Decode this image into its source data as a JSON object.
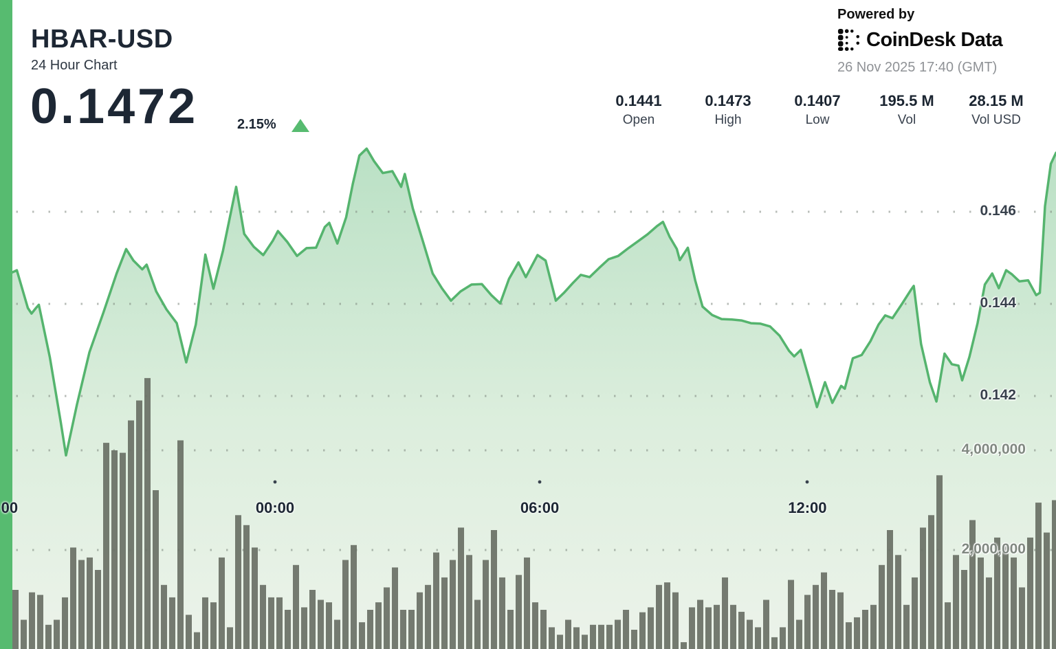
{
  "header": {
    "symbol": "HBAR-USD",
    "subtitle": "24 Hour Chart",
    "price": "0.1472",
    "change_pct": "2.15%",
    "change_direction": "up",
    "powered_by": "Powered by",
    "brand": "CoinDesk Data",
    "timestamp": "26 Nov 2025 17:40 (GMT)"
  },
  "stats": [
    {
      "value": "0.1441",
      "label": "Open"
    },
    {
      "value": "0.1473",
      "label": "High"
    },
    {
      "value": "0.1407",
      "label": "Low"
    },
    {
      "value": "195.5 M",
      "label": "Vol"
    },
    {
      "value": "28.15 M",
      "label": "Vol USD"
    }
  ],
  "colors": {
    "accent": "#57bb70",
    "line": "#55b46e",
    "fill_top": "#b9e0c4",
    "fill_mid": "#dceedd",
    "fill_bottom": "#ecf3ea",
    "volume_bar": "#6b7166",
    "grid_dot": "#7e877e",
    "tick_dot": "#39434e",
    "triangle": "#57bb70"
  },
  "chart_data": {
    "type": "area",
    "title": "HBAR-USD 24 Hour Chart",
    "legend": "none",
    "grid": "dotted-horizontal",
    "x_axis": {
      "span_min": 1440,
      "ticks": [
        {
          "label": "00",
          "t_min": 13,
          "tick_dot": false
        },
        {
          "label": "00:00",
          "t_min": 375,
          "tick_dot": true
        },
        {
          "label": "06:00",
          "t_min": 736,
          "tick_dot": true
        },
        {
          "label": "12:00",
          "t_min": 1101,
          "tick_dot": true
        }
      ]
    },
    "y_axis_price": {
      "gridlines": [
        0.146,
        0.144,
        0.142
      ],
      "labels": [
        "0.146",
        "0.144",
        "0.142"
      ],
      "range": [
        0.1405,
        0.1475
      ]
    },
    "y_axis_volume": {
      "gridlines_millions": [
        4,
        2
      ],
      "labels": [
        "4,000,000",
        "2,000,000"
      ],
      "range_millions": [
        0,
        5.6
      ]
    },
    "price_series": {
      "t_min": [
        0,
        15,
        23,
        38,
        43,
        49,
        53,
        68,
        83,
        90,
        105,
        122,
        141,
        159,
        172,
        182,
        194,
        200,
        213,
        227,
        241,
        254,
        267,
        280,
        291,
        304,
        322,
        333,
        346,
        359,
        372,
        379,
        392,
        405,
        418,
        431,
        443,
        449,
        460,
        472,
        481,
        490,
        500,
        510,
        522,
        535,
        547,
        552,
        563,
        577,
        590,
        603,
        615,
        628,
        643,
        657,
        670,
        682,
        694,
        707,
        717,
        733,
        744,
        758,
        769,
        781,
        792,
        804,
        817,
        830,
        843,
        857,
        870,
        883,
        896,
        904,
        913,
        923,
        927,
        938,
        948,
        958,
        971,
        984,
        998,
        1011,
        1024,
        1037,
        1050,
        1063,
        1076,
        1083,
        1092,
        1103,
        1114,
        1125,
        1135,
        1147,
        1152,
        1163,
        1175,
        1187,
        1198,
        1207,
        1217,
        1230,
        1242,
        1246,
        1256,
        1268,
        1277,
        1288,
        1298,
        1307,
        1312,
        1322,
        1333,
        1343,
        1353,
        1362,
        1372,
        1380,
        1390,
        1402,
        1413,
        1418,
        1425,
        1433,
        1440
      ],
      "price": [
        0.1446,
        0.14467,
        0.14473,
        0.14391,
        0.14379,
        0.14391,
        0.14398,
        0.14284,
        0.14142,
        0.14071,
        0.14182,
        0.14295,
        0.14381,
        0.14466,
        0.14519,
        0.14494,
        0.14475,
        0.14485,
        0.14427,
        0.14388,
        0.14358,
        0.14273,
        0.14355,
        0.14507,
        0.14433,
        0.14515,
        0.14654,
        0.14552,
        0.14524,
        0.14506,
        0.14537,
        0.14558,
        0.14534,
        0.14504,
        0.14521,
        0.14522,
        0.14567,
        0.14576,
        0.14531,
        0.14588,
        0.1466,
        0.14722,
        0.14737,
        0.1471,
        0.14684,
        0.14688,
        0.14654,
        0.14682,
        0.14607,
        0.14534,
        0.14466,
        0.14433,
        0.14407,
        0.14427,
        0.14442,
        0.14443,
        0.14419,
        0.14401,
        0.14454,
        0.1449,
        0.14458,
        0.14506,
        0.14494,
        0.14407,
        0.14424,
        0.14445,
        0.14463,
        0.14458,
        0.14478,
        0.14497,
        0.14504,
        0.14521,
        0.14536,
        0.14551,
        0.14569,
        0.14578,
        0.14546,
        0.14519,
        0.14495,
        0.14522,
        0.14451,
        0.14394,
        0.14376,
        0.14367,
        0.14366,
        0.14364,
        0.14358,
        0.14357,
        0.14351,
        0.14331,
        0.14298,
        0.14286,
        0.143,
        0.14239,
        0.14176,
        0.1423,
        0.14185,
        0.14222,
        0.14216,
        0.14282,
        0.14289,
        0.14319,
        0.14355,
        0.14375,
        0.14369,
        0.144,
        0.1443,
        0.14439,
        0.14313,
        0.1423,
        0.14188,
        0.14292,
        0.14269,
        0.14266,
        0.14234,
        0.14285,
        0.14358,
        0.14442,
        0.14466,
        0.14434,
        0.14473,
        0.14464,
        0.14449,
        0.14451,
        0.14419,
        0.14424,
        0.14612,
        0.14704,
        0.14728
      ]
    },
    "volume_series": {
      "unit": "millions",
      "values_millions": [
        1.2,
        0.6,
        1.15,
        1.1,
        0.5,
        0.6,
        1.05,
        2.05,
        1.8,
        1.85,
        1.6,
        4.15,
        4.0,
        3.95,
        4.6,
        5.0,
        5.45,
        3.2,
        1.3,
        1.05,
        4.2,
        0.7,
        0.35,
        1.05,
        0.95,
        1.85,
        0.45,
        2.7,
        2.5,
        2.05,
        1.3,
        1.05,
        1.05,
        0.8,
        1.7,
        0.85,
        1.2,
        1.0,
        0.95,
        0.6,
        1.8,
        2.1,
        0.55,
        0.8,
        0.95,
        1.25,
        1.65,
        0.8,
        0.8,
        1.15,
        1.3,
        1.95,
        1.45,
        1.8,
        2.45,
        1.9,
        1.0,
        1.8,
        2.4,
        1.45,
        0.8,
        1.5,
        1.85,
        0.95,
        0.8,
        0.45,
        0.3,
        0.6,
        0.45,
        0.3,
        0.5,
        0.5,
        0.5,
        0.6,
        0.8,
        0.4,
        0.75,
        0.85,
        1.3,
        1.35,
        1.15,
        0.15,
        0.85,
        1.0,
        0.85,
        0.9,
        1.45,
        0.9,
        0.76,
        0.6,
        0.45,
        1.0,
        0.25,
        0.45,
        1.4,
        0.6,
        1.1,
        1.3,
        1.55,
        1.2,
        1.15,
        0.55,
        0.65,
        0.8,
        0.9,
        1.7,
        2.4,
        1.9,
        0.9,
        1.45,
        2.45,
        2.7,
        3.5,
        0.95,
        1.9,
        1.6,
        2.6,
        1.85,
        1.45,
        2.25,
        2.1,
        1.85,
        1.25,
        2.25,
        2.95,
        2.35,
        3.0
      ]
    }
  }
}
